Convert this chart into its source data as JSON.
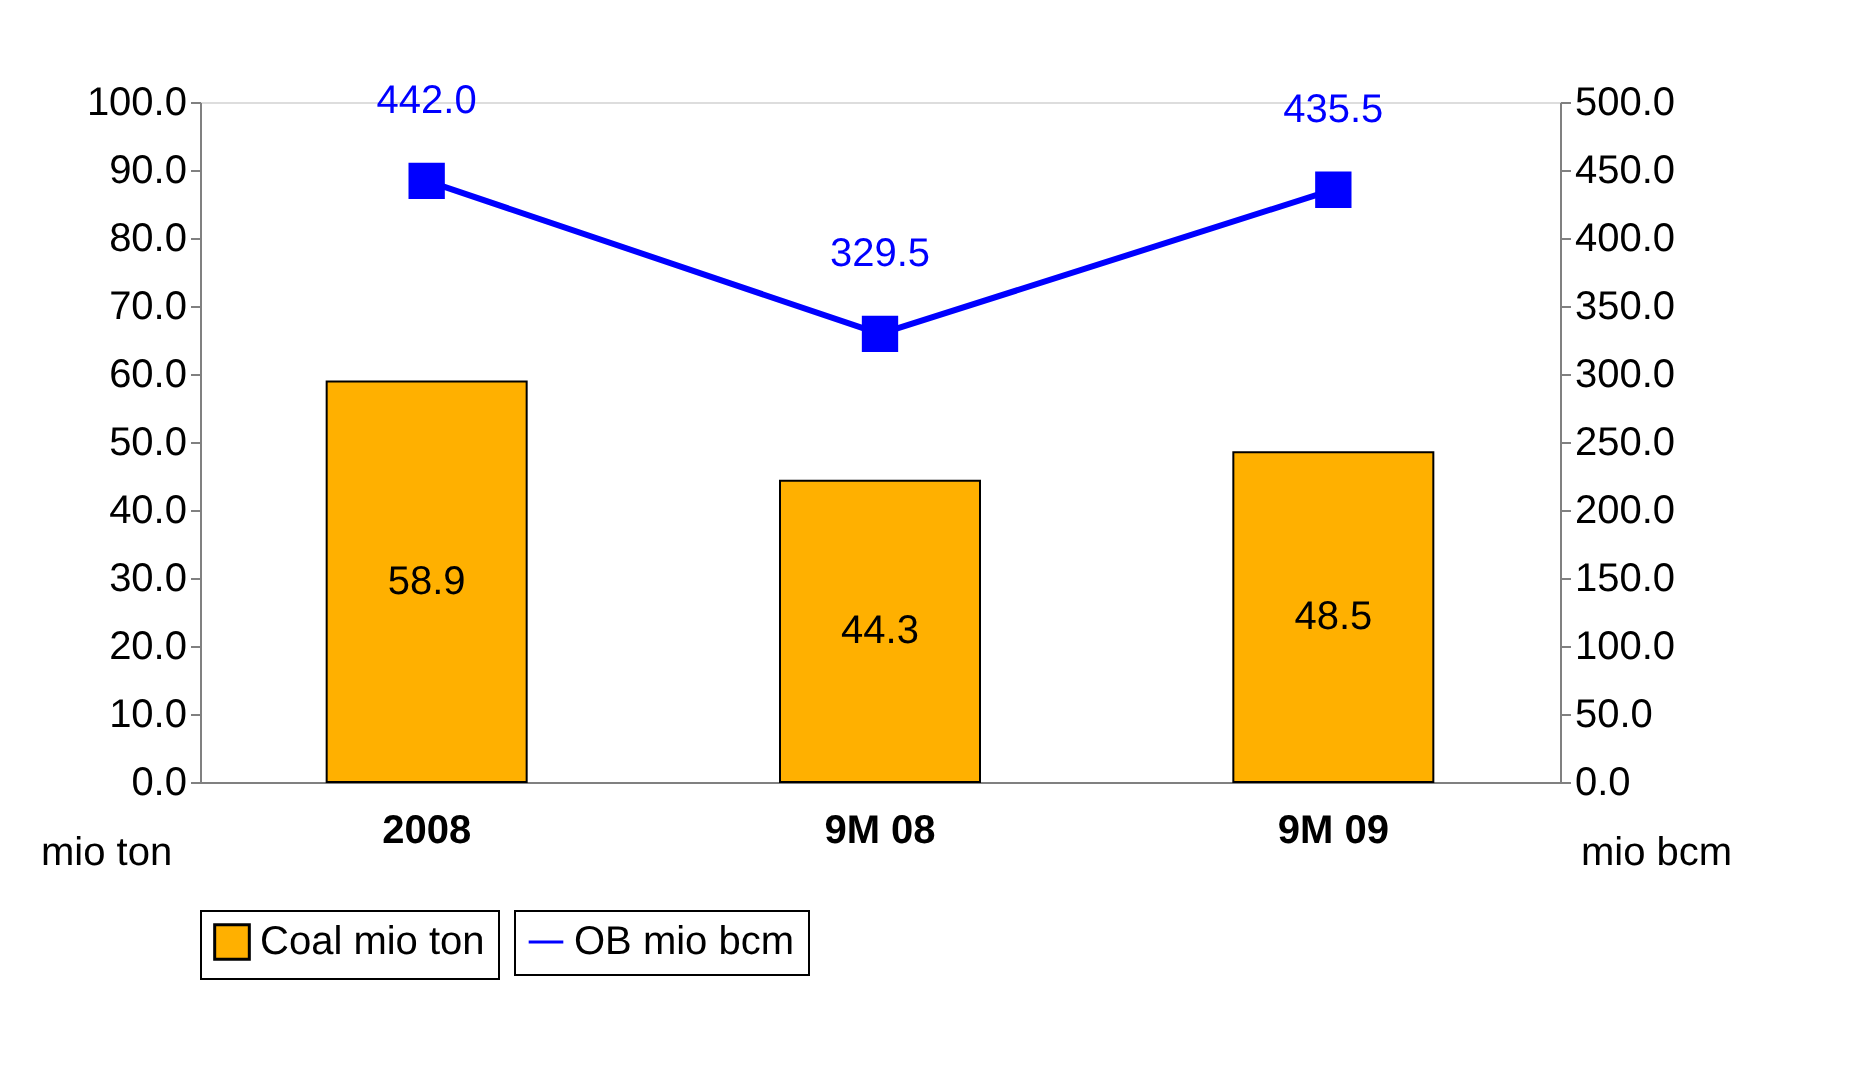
{
  "chart_data": {
    "type": "bar",
    "categories": [
      "2008",
      "9M 08",
      "9M 09"
    ],
    "series": [
      {
        "name": "Coal mio ton",
        "color": "#ffb000",
        "values": [
          58.9,
          44.3,
          48.5
        ]
      },
      {
        "name": "OB mio bcm",
        "type": "line",
        "axis": "y2",
        "color": "#0000ff",
        "values": [
          442.0,
          329.5,
          435.5
        ],
        "value_labels": [
          "442.0",
          "329.5",
          "435.5"
        ]
      }
    ],
    "ylabel": "mio ton",
    "y2label": "mio bcm",
    "ylim": [
      0,
      100
    ],
    "yticks": [
      {
        "value": 0,
        "label": "0.0"
      },
      {
        "value": 10,
        "label": "10.0"
      },
      {
        "value": 20,
        "label": "20.0"
      },
      {
        "value": 30,
        "label": "30.0"
      },
      {
        "value": 40,
        "label": "40.0"
      },
      {
        "value": 50,
        "label": "50.0"
      },
      {
        "value": 60,
        "label": "60.0"
      },
      {
        "value": 70,
        "label": "70.0"
      },
      {
        "value": 80,
        "label": "80.0"
      },
      {
        "value": 90,
        "label": "90.0"
      },
      {
        "value": 100,
        "label": "100.0"
      }
    ],
    "y2lim": [
      0,
      500
    ],
    "y2ticks": [
      {
        "value": 0,
        "label": "0.0"
      },
      {
        "value": 50,
        "label": "50.0"
      },
      {
        "value": 100,
        "label": "100.0"
      },
      {
        "value": 150,
        "label": "150.0"
      },
      {
        "value": 200,
        "label": "200.0"
      },
      {
        "value": 250,
        "label": "250.0"
      },
      {
        "value": 300,
        "label": "300.0"
      },
      {
        "value": 350,
        "label": "350.0"
      },
      {
        "value": 400,
        "label": "400.0"
      },
      {
        "value": 450,
        "label": "450.0"
      },
      {
        "value": 500,
        "label": "500.0"
      }
    ],
    "data_labels": true,
    "marker": "square",
    "line_style": "solid",
    "grid": false,
    "legend": "bottom"
  }
}
